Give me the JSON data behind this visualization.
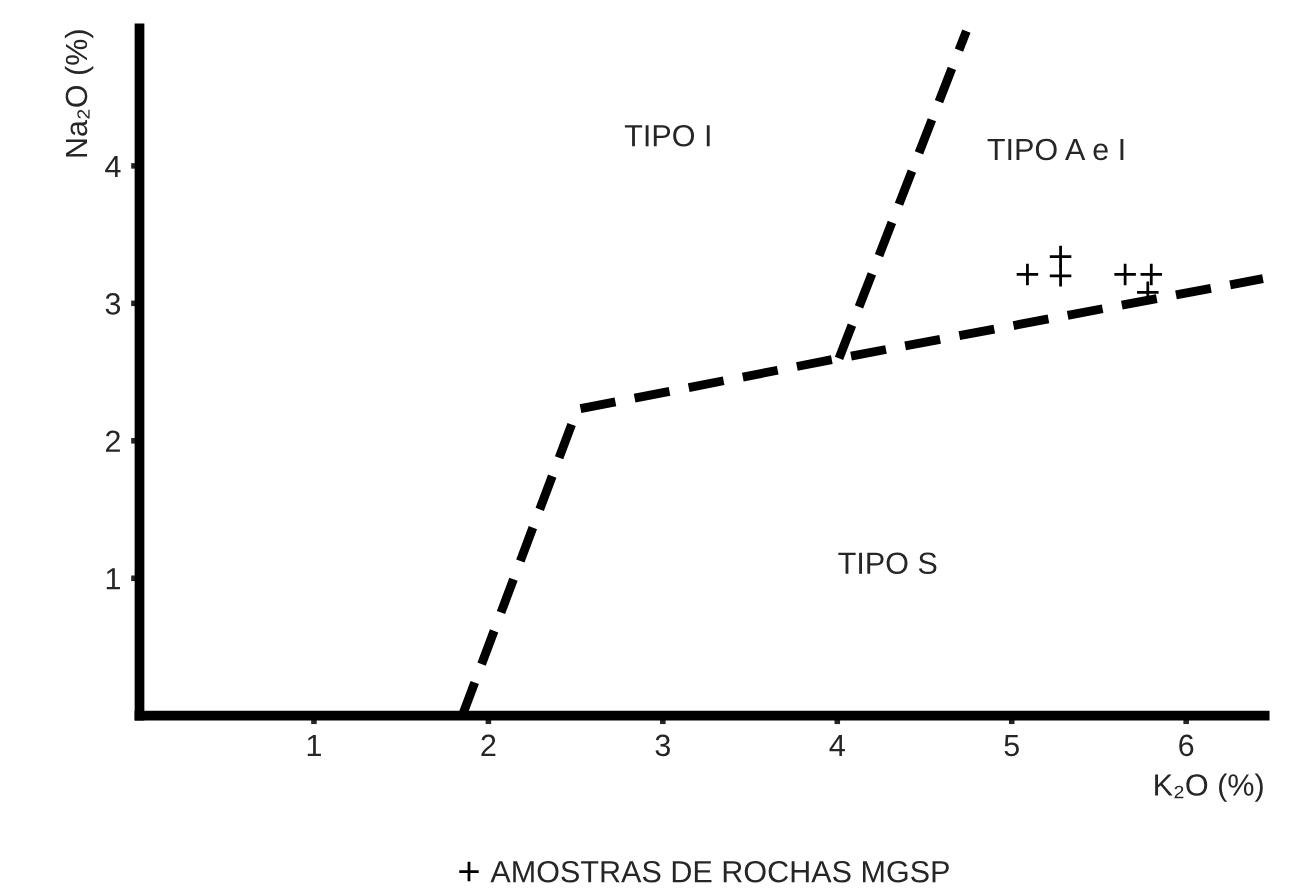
{
  "chart_data": {
    "type": "scatter",
    "xlabel": "K₂O (%)",
    "ylabel": "Na₂O (%)",
    "xlim": [
      0,
      6.45
    ],
    "ylim": [
      0,
      5
    ],
    "xticks": [
      1,
      2,
      3,
      4,
      5,
      6
    ],
    "yticks": [
      1,
      2,
      3,
      4
    ],
    "grid": false,
    "legend": "bottom",
    "series": [
      {
        "type": "line",
        "color": "#000000",
        "line_style": "dashed",
        "marker": "none",
        "x": [
          1.85,
          2.51,
          4.01,
          6.44
        ],
        "values": [
          0,
          2.23,
          2.6,
          3.18
        ]
      },
      {
        "type": "line",
        "color": "#000000",
        "line_style": "dashed",
        "marker": "none",
        "x": [
          4.01,
          4.74
        ],
        "values": [
          2.6,
          4.98
        ]
      },
      {
        "name": "AMOSTRAS DE ROCHAS MGSP",
        "color": "#000000",
        "marker": "cross",
        "x": [
          5.09,
          5.28,
          5.28,
          5.65,
          5.8,
          5.78
        ],
        "values": [
          3.21,
          3.34,
          3.2,
          3.21,
          3.21,
          3.08
        ]
      }
    ],
    "annotations": [
      "TIPO I",
      "TIPO A e I",
      "TIPO S"
    ]
  }
}
